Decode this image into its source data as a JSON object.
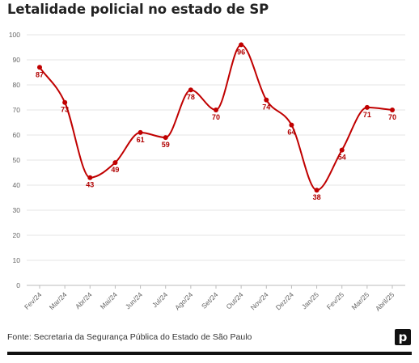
{
  "colors": {
    "line": "#c00000",
    "label": "#b00000",
    "grid": "#e6e6e6",
    "axis": "#bbbbbb"
  },
  "footer": {
    "source": "Fonte: Secretaria da Segurança Pública do Estado de São Paulo",
    "logo_letter": "p"
  },
  "chart_data": {
    "type": "line",
    "title": "Letalidade policial no estado de SP",
    "xlabel": "",
    "ylabel": "",
    "ylim": [
      0,
      100
    ],
    "yticks": [
      0,
      10,
      20,
      30,
      40,
      50,
      60,
      70,
      80,
      90,
      100
    ],
    "grid": true,
    "legend": "none",
    "categories": [
      "Fev/24",
      "Mar/24",
      "Abr/24",
      "Mai/24",
      "Jun/24",
      "Jul/24",
      "Ago/24",
      "Set/24",
      "Out/24",
      "Nov/24",
      "Dez/24",
      "Jan/25",
      "Fev/25",
      "Mar/25",
      "Abril/25"
    ],
    "series": [
      {
        "values": [
          87,
          73,
          43,
          49,
          61,
          59,
          78,
          70,
          96,
          74,
          64,
          38,
          54,
          71,
          70
        ]
      }
    ]
  }
}
